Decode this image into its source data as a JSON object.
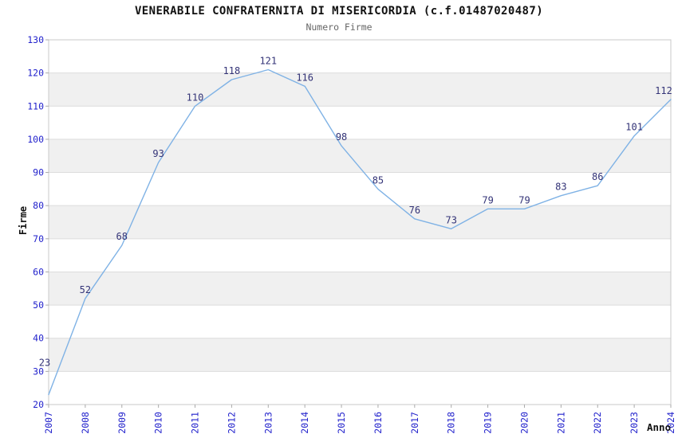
{
  "chart_data": {
    "type": "line",
    "title": "VENERABILE CONFRATERNITA DI MISERICORDIA (c.f.01487020487)",
    "subtitle": "Numero Firme",
    "xlabel": "Anno",
    "ylabel": "Firme",
    "categories": [
      "2007",
      "2008",
      "2009",
      "2010",
      "2011",
      "2012",
      "2013",
      "2014",
      "2015",
      "2016",
      "2017",
      "2018",
      "2019",
      "2020",
      "2021",
      "2022",
      "2023",
      "2024"
    ],
    "values": [
      23,
      52,
      68,
      93,
      110,
      118,
      121,
      116,
      98,
      85,
      76,
      73,
      79,
      79,
      83,
      86,
      101,
      112
    ],
    "ylim": [
      20,
      130
    ],
    "ytick_step": 10,
    "yticks": [
      20,
      30,
      40,
      50,
      60,
      70,
      80,
      90,
      100,
      110,
      120,
      130
    ],
    "grid": "horizontal gridlines, alternating light-gray bands",
    "legend_position": "none",
    "colors": {
      "line": "#7fb2e5",
      "data_label": "#333377",
      "tick_label": "#2222cc",
      "band": "#f0f0f0",
      "gridline": "#dcdcdc",
      "plot_border": "#c8c8c8",
      "tick_mark": "#aaaaaa",
      "title": "#111111",
      "subtitle": "#666666",
      "axis_title": "#111111",
      "background": "#ffffff"
    }
  }
}
